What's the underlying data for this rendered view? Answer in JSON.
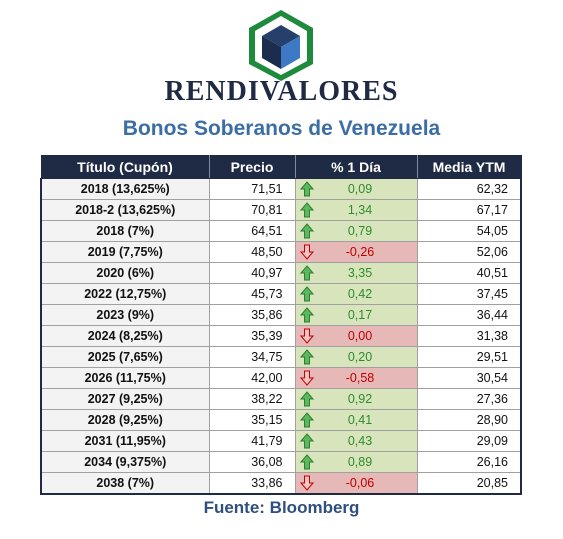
{
  "header": {
    "brand": "RENDIVALORES",
    "subtitle": "Bonos Soberanos de Venezuela"
  },
  "colors": {
    "navy": "#1f2a44",
    "subtitle_blue": "#3a6ea5",
    "up_bg": "#d8e4bc",
    "down_bg": "#e6b8b7",
    "up_text": "#2e8b2e",
    "down_text": "#c00000",
    "logo_green": "#1e8a3c"
  },
  "table": {
    "columns": [
      "Título (Cupón)",
      "Precio",
      "% 1 Día",
      "Media YTM"
    ],
    "rows": [
      {
        "title": "2018 (13,625%)",
        "price": "71,51",
        "change": "0,09",
        "dir": "up",
        "ytm": "62,32"
      },
      {
        "title": "2018-2 (13,625%)",
        "price": "70,81",
        "change": "1,34",
        "dir": "up",
        "ytm": "67,17"
      },
      {
        "title": "2018 (7%)",
        "price": "64,51",
        "change": "0,79",
        "dir": "up",
        "ytm": "54,05"
      },
      {
        "title": "2019 (7,75%)",
        "price": "48,50",
        "change": "-0,26",
        "dir": "down",
        "ytm": "52,06"
      },
      {
        "title": "2020 (6%)",
        "price": "40,97",
        "change": "3,35",
        "dir": "up",
        "ytm": "40,51"
      },
      {
        "title": "2022 (12,75%)",
        "price": "45,73",
        "change": "0,42",
        "dir": "up",
        "ytm": "37,45"
      },
      {
        "title": "2023 (9%)",
        "price": "35,86",
        "change": "0,17",
        "dir": "up",
        "ytm": "36,44"
      },
      {
        "title": "2024 (8,25%)",
        "price": "35,39",
        "change": "0,00",
        "dir": "down",
        "ytm": "31,38"
      },
      {
        "title": "2025 (7,65%)",
        "price": "34,75",
        "change": "0,20",
        "dir": "up",
        "ytm": "29,51"
      },
      {
        "title": "2026 (11,75%)",
        "price": "42,00",
        "change": "-0,58",
        "dir": "down",
        "ytm": "30,54"
      },
      {
        "title": "2027 (9,25%)",
        "price": "38,22",
        "change": "0,92",
        "dir": "up",
        "ytm": "27,36"
      },
      {
        "title": "2028 (9,25%)",
        "price": "35,15",
        "change": "0,41",
        "dir": "up",
        "ytm": "28,90"
      },
      {
        "title": "2031 (11,95%)",
        "price": "41,79",
        "change": "0,43",
        "dir": "up",
        "ytm": "29,09"
      },
      {
        "title": "2034 (9,375%)",
        "price": "36,08",
        "change": "0,89",
        "dir": "up",
        "ytm": "26,16"
      },
      {
        "title": "2038 (7%)",
        "price": "33,86",
        "change": "-0,06",
        "dir": "down",
        "ytm": "20,85"
      }
    ]
  },
  "footer": {
    "source": "Fuente: Bloomberg"
  }
}
